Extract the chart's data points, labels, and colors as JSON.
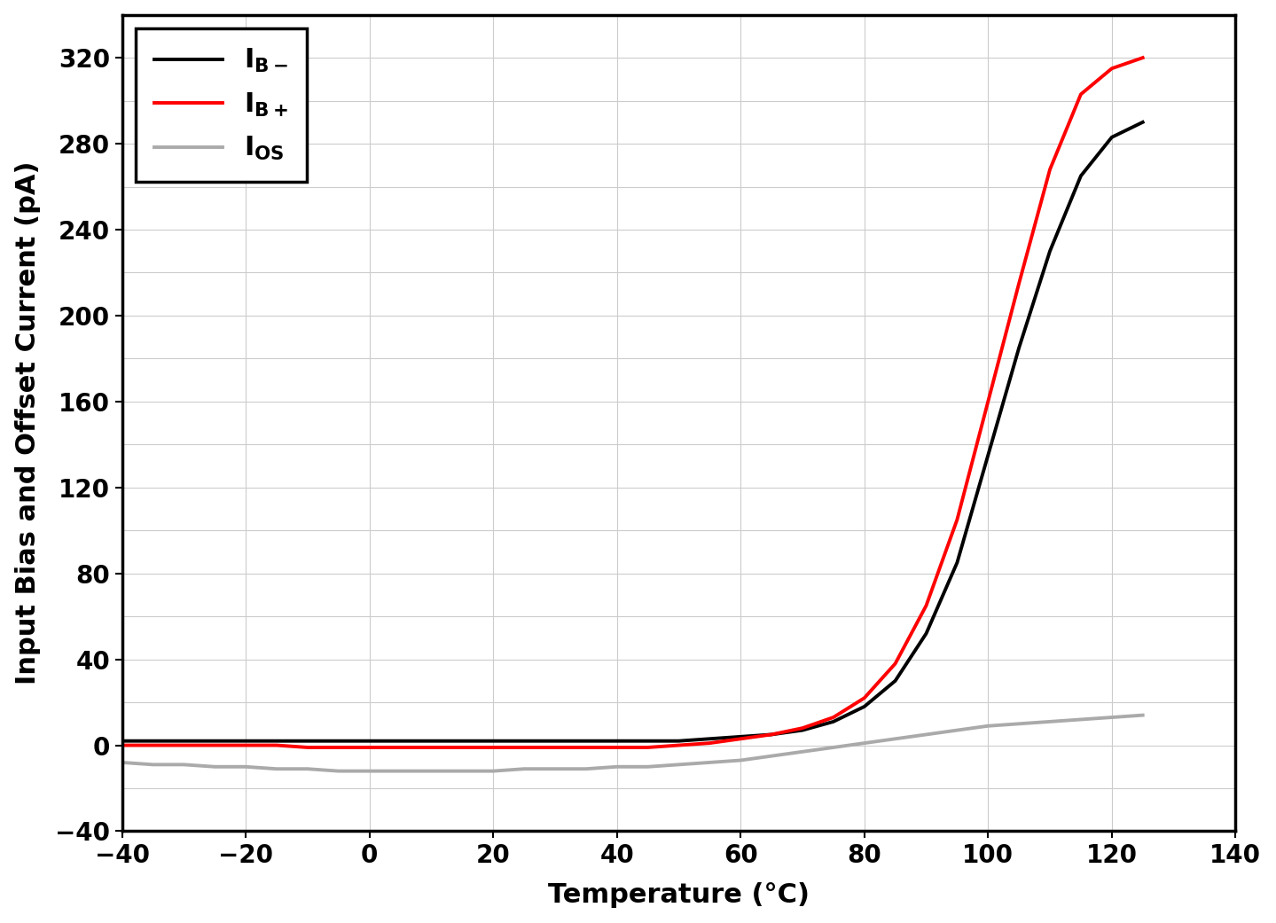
{
  "title": "",
  "xlabel": "Temperature (°C)",
  "ylabel": "Input Bias and Offset Current (pA)",
  "xlim": [
    -40,
    140
  ],
  "ylim": [
    -40,
    340
  ],
  "xticks": [
    -40,
    -20,
    0,
    20,
    40,
    60,
    80,
    100,
    120,
    140
  ],
  "yticks_major": [
    -40,
    0,
    40,
    80,
    120,
    160,
    200,
    240,
    280,
    320
  ],
  "yticks_minor": [
    -40,
    -20,
    0,
    20,
    40,
    60,
    80,
    100,
    120,
    140,
    160,
    180,
    200,
    220,
    240,
    260,
    280,
    300,
    320
  ],
  "grid_color": "#cccccc",
  "background_color": "#ffffff",
  "plot_background": "#ffffff",
  "line_IB_minus_color": "#000000",
  "line_IB_plus_color": "#ff0000",
  "line_IOS_color": "#aaaaaa",
  "line_width": 2.8,
  "temp_data": [
    -40,
    -35,
    -30,
    -25,
    -20,
    -15,
    -10,
    -5,
    0,
    5,
    10,
    15,
    20,
    25,
    30,
    35,
    40,
    45,
    50,
    55,
    60,
    65,
    70,
    75,
    80,
    85,
    90,
    95,
    100,
    105,
    110,
    115,
    120,
    125
  ],
  "IB_minus": [
    2,
    2,
    2,
    2,
    2,
    2,
    2,
    2,
    2,
    2,
    2,
    2,
    2,
    2,
    2,
    2,
    2,
    2,
    2,
    3,
    4,
    5,
    7,
    11,
    18,
    30,
    52,
    85,
    135,
    185,
    230,
    265,
    283,
    290
  ],
  "IB_plus": [
    0,
    0,
    0,
    0,
    0,
    0,
    -1,
    -1,
    -1,
    -1,
    -1,
    -1,
    -1,
    -1,
    -1,
    -1,
    -1,
    -1,
    0,
    1,
    3,
    5,
    8,
    13,
    22,
    38,
    65,
    105,
    160,
    215,
    268,
    303,
    315,
    320
  ],
  "IOS": [
    -8,
    -9,
    -9,
    -10,
    -10,
    -11,
    -11,
    -12,
    -12,
    -12,
    -12,
    -12,
    -12,
    -11,
    -11,
    -11,
    -10,
    -10,
    -9,
    -8,
    -7,
    -5,
    -3,
    -1,
    1,
    3,
    5,
    7,
    9,
    10,
    11,
    12,
    13,
    14
  ]
}
